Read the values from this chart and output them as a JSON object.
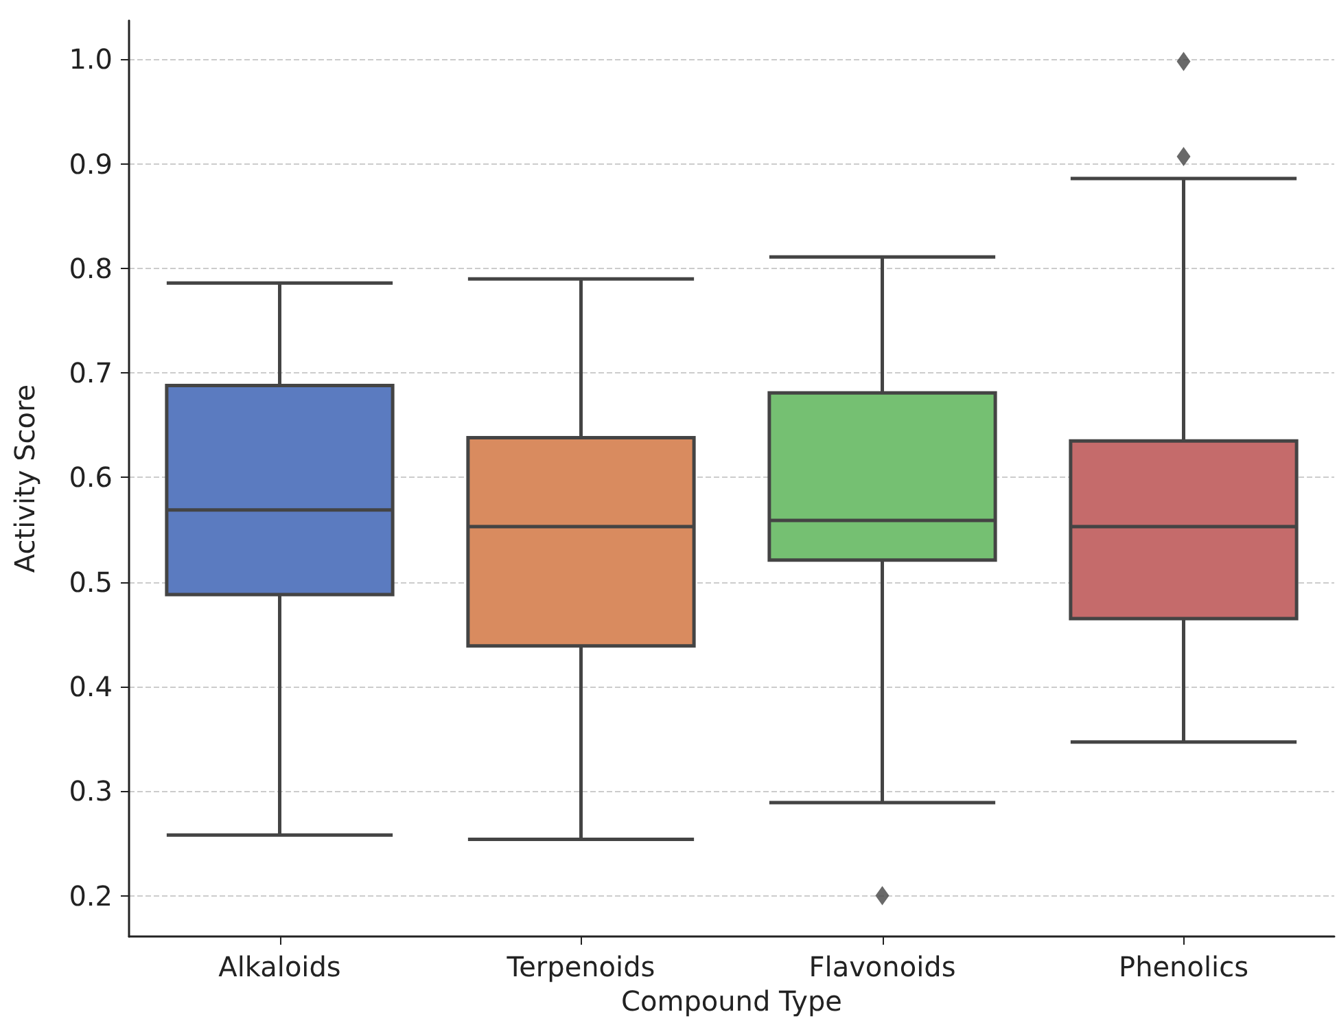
{
  "chart_data": {
    "type": "box",
    "xlabel": "Compound Type",
    "ylabel": "Activity Score",
    "categories": [
      "Alkaloids",
      "Terpenoids",
      "Flavonoids",
      "Phenolics"
    ],
    "colors": [
      "#5b7bc0",
      "#d98b5f",
      "#75c072",
      "#c56b6b"
    ],
    "boxes": [
      {
        "low": 0.258,
        "q1": 0.488,
        "median": 0.569,
        "q3": 0.688,
        "high": 0.786
      },
      {
        "low": 0.254,
        "q1": 0.439,
        "median": 0.553,
        "q3": 0.638,
        "high": 0.79
      },
      {
        "low": 0.289,
        "q1": 0.521,
        "median": 0.559,
        "q3": 0.681,
        "high": 0.811,
        "outliers": [
          0.2
        ]
      },
      {
        "low": 0.347,
        "q1": 0.465,
        "median": 0.553,
        "q3": 0.635,
        "high": 0.886,
        "outliers": [
          0.907,
          0.998
        ]
      }
    ],
    "ylim": [
      0.161,
      1.037
    ],
    "yticks": [
      0.2,
      0.3,
      0.4,
      0.5,
      0.6,
      0.7,
      0.8,
      0.9,
      {
        "value": 1,
        "label": "1.0"
      }
    ],
    "grid": "y",
    "marker": "diamond"
  }
}
